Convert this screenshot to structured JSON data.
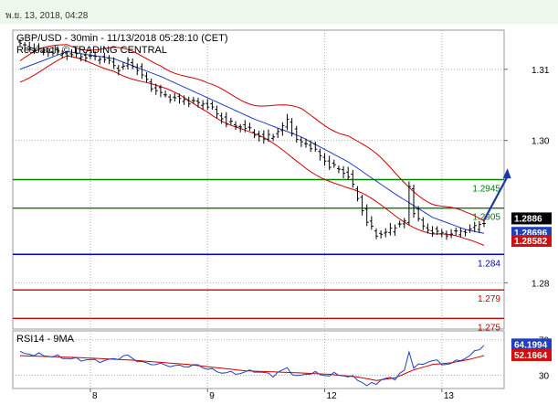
{
  "header": {
    "timestamp": "พ.ย. 13, 2018, 04:28"
  },
  "chart_data": [
    {
      "type": "line",
      "title": "GBP/USD - 30min - 11/13/2018 05:28:10 (CET)",
      "subtitle": "Research © TRADING CENTRAL",
      "ylim": [
        1.2735,
        1.3155
      ],
      "y_ticks": [
        {
          "value": 1.31,
          "label": "1.31"
        },
        {
          "value": 1.3,
          "label": "1.30"
        },
        {
          "value": 1.28,
          "label": "1.28"
        }
      ],
      "x_ticks": [
        {
          "index": 15,
          "label": "8"
        },
        {
          "index": 40,
          "label": "9"
        },
        {
          "index": 65,
          "label": "12"
        },
        {
          "index": 90,
          "label": "13"
        }
      ],
      "candle_count": 100,
      "price_anchors": [
        [
          0,
          1.3135
        ],
        [
          4,
          1.3127
        ],
        [
          9,
          1.3122
        ],
        [
          14,
          1.3118
        ],
        [
          18,
          1.3115
        ],
        [
          21,
          1.31
        ],
        [
          23,
          1.311
        ],
        [
          25,
          1.31
        ],
        [
          28,
          1.3075
        ],
        [
          31,
          1.3062
        ],
        [
          36,
          1.3055
        ],
        [
          40,
          1.305
        ],
        [
          44,
          1.3025
        ],
        [
          48,
          1.3018
        ],
        [
          52,
          1.3002
        ],
        [
          55,
          1.3012
        ],
        [
          57,
          1.3028
        ],
        [
          59,
          1.3
        ],
        [
          62,
          1.2992
        ],
        [
          64,
          1.2978
        ],
        [
          66,
          1.2965
        ],
        [
          68,
          1.296
        ],
        [
          70,
          1.295
        ],
        [
          72,
          1.292
        ],
        [
          74,
          1.2885
        ],
        [
          76,
          1.2868
        ],
        [
          78,
          1.287
        ],
        [
          80,
          1.288
        ],
        [
          82,
          1.2885
        ],
        [
          83,
          1.2935
        ],
        [
          84,
          1.29
        ],
        [
          86,
          1.2878
        ],
        [
          88,
          1.2872
        ],
        [
          91,
          1.2868
        ],
        [
          94,
          1.2872
        ],
        [
          96,
          1.2875
        ],
        [
          99,
          1.2886
        ]
      ],
      "moving_average_anchors": [
        [
          0,
          1.31
        ],
        [
          10,
          1.3125
        ],
        [
          20,
          1.3115
        ],
        [
          30,
          1.309
        ],
        [
          40,
          1.306
        ],
        [
          50,
          1.303
        ],
        [
          60,
          1.3005
        ],
        [
          70,
          1.297
        ],
        [
          80,
          1.2925
        ],
        [
          88,
          1.2892
        ],
        [
          95,
          1.2875
        ],
        [
          99,
          1.28696
        ]
      ],
      "band_width_anchors": [
        [
          0,
          0.0012
        ],
        [
          20,
          0.0012
        ],
        [
          30,
          0.002
        ],
        [
          40,
          0.0015
        ],
        [
          50,
          0.0025
        ],
        [
          60,
          0.0035
        ],
        [
          70,
          0.004
        ],
        [
          80,
          0.0028
        ],
        [
          90,
          0.002
        ],
        [
          99,
          0.0018
        ]
      ],
      "projection": {
        "from_index": 99,
        "from_value": 1.2888,
        "to_index": 104,
        "to_value": 1.2957
      },
      "levels": [
        {
          "value": 1.2945,
          "label": "1.2945",
          "color": "#008000"
        },
        {
          "value": 1.2905,
          "label": "1.2905",
          "color": "#008000"
        },
        {
          "value": 1.284,
          "label": "1.284",
          "color": "#0000cc"
        },
        {
          "value": 1.279,
          "label": "1.279",
          "color": "#cc0000"
        },
        {
          "value": 1.275,
          "label": "1.275",
          "color": "#cc0000"
        }
      ],
      "price_badges": [
        {
          "value": 1.2886,
          "label": "1.2886",
          "bg": "#000000",
          "fg": "#ffffff"
        },
        {
          "value": 1.28696,
          "label": "1.28696",
          "bg": "#1f3fbf",
          "fg": "#ffffff"
        },
        {
          "value": 1.28582,
          "label": "1.28582",
          "bg": "#d01010",
          "fg": "#ffffff"
        }
      ],
      "colors": {
        "candles": "#000000",
        "bands": "#d00000",
        "moving_average": "#1f3fbf",
        "arrow": "#1a3aa0",
        "grid": "#b0b0b0"
      }
    },
    {
      "type": "line",
      "title": "RSI14 - 9MA",
      "ylim": [
        15,
        80
      ],
      "y_ticks": [
        {
          "value": 30,
          "label": "30"
        },
        {
          "value": 70,
          "label": "70"
        }
      ],
      "rsi_anchors": [
        [
          0,
          55
        ],
        [
          6,
          52
        ],
        [
          12,
          48
        ],
        [
          18,
          46
        ],
        [
          23,
          52
        ],
        [
          26,
          44
        ],
        [
          30,
          42
        ],
        [
          34,
          40
        ],
        [
          38,
          41
        ],
        [
          42,
          34
        ],
        [
          46,
          32
        ],
        [
          50,
          35
        ],
        [
          54,
          30
        ],
        [
          57,
          38
        ],
        [
          59,
          28
        ],
        [
          62,
          33
        ],
        [
          65,
          30
        ],
        [
          68,
          31
        ],
        [
          72,
          26
        ],
        [
          74,
          18
        ],
        [
          76,
          22
        ],
        [
          78,
          26
        ],
        [
          80,
          27
        ],
        [
          82,
          35
        ],
        [
          83,
          56
        ],
        [
          84,
          40
        ],
        [
          86,
          42
        ],
        [
          88,
          48
        ],
        [
          90,
          42
        ],
        [
          93,
          45
        ],
        [
          96,
          52
        ],
        [
          99,
          64.1994
        ]
      ],
      "ma_anchors": [
        [
          0,
          52
        ],
        [
          12,
          50
        ],
        [
          24,
          47
        ],
        [
          36,
          42
        ],
        [
          48,
          35
        ],
        [
          58,
          33
        ],
        [
          66,
          31
        ],
        [
          72,
          28
        ],
        [
          76,
          24
        ],
        [
          80,
          27
        ],
        [
          84,
          36
        ],
        [
          88,
          42
        ],
        [
          92,
          44
        ],
        [
          96,
          48
        ],
        [
          99,
          52.1664
        ]
      ],
      "badges": [
        {
          "value": 64.1994,
          "label": "64.1994",
          "bg": "#1f3fbf",
          "fg": "#ffffff"
        },
        {
          "value": 52.1664,
          "label": "52.1664",
          "bg": "#d01010",
          "fg": "#ffffff"
        }
      ],
      "colors": {
        "rsi": "#1f3fbf",
        "ma": "#d00000"
      }
    }
  ]
}
